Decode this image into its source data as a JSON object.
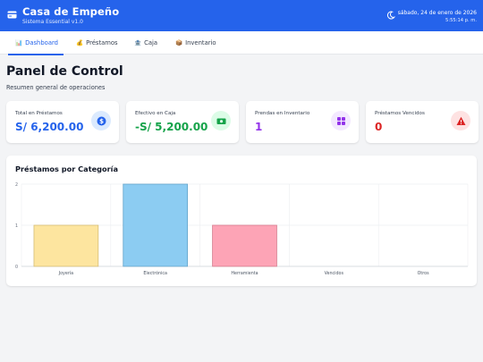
{
  "header": {
    "title": "Casa de Empeño",
    "subtitle": "Sistema Essential v1.0",
    "date": "sábado, 24 de enero de 2026",
    "time": "5:55:14 p. m.",
    "brand_color": "#2563eb"
  },
  "nav": {
    "tabs": [
      {
        "label": "Dashboard",
        "icon": "chart-icon",
        "active": true
      },
      {
        "label": "Préstamos",
        "icon": "money-bag-icon",
        "active": false
      },
      {
        "label": "Caja",
        "icon": "bank-icon",
        "active": false
      },
      {
        "label": "Inventario",
        "icon": "box-icon",
        "active": false
      }
    ]
  },
  "main": {
    "title": "Panel de Control",
    "subtitle": "Resumen general de operaciones",
    "cards": [
      {
        "label": "Total en Préstamos",
        "value": "S/ 6,200.00",
        "value_color": "#2563eb",
        "icon": "dollar-icon",
        "icon_bg": "#dbeafe",
        "icon_color": "#2563eb"
      },
      {
        "label": "Efectivo en Caja",
        "value": "-S/ 5,200.00",
        "value_color": "#16a34a",
        "icon": "cash-icon",
        "icon_bg": "#dcfce7",
        "icon_color": "#16a34a"
      },
      {
        "label": "Prendas en Inventario",
        "value": "1",
        "value_color": "#9333ea",
        "icon": "grid-icon",
        "icon_bg": "#f3e8ff",
        "icon_color": "#9333ea"
      },
      {
        "label": "Préstamos Vencidos",
        "value": "0",
        "value_color": "#dc2626",
        "icon": "warning-icon",
        "icon_bg": "#fee2e2",
        "icon_color": "#dc2626"
      }
    ]
  },
  "chart_data": {
    "type": "bar",
    "title": "Préstamos por Categoría",
    "categories": [
      "Joyería",
      "Electrónica",
      "Herramienta",
      "Vencidos",
      "Otros"
    ],
    "values": [
      1,
      2,
      1,
      0,
      0
    ],
    "colors": [
      "#fde59f",
      "#8cccf2",
      "#fda4b6",
      "#c7c7ea",
      "#dddddd"
    ],
    "ylim": [
      0,
      2
    ],
    "yticks": [
      0,
      1,
      2
    ],
    "grid": true
  }
}
